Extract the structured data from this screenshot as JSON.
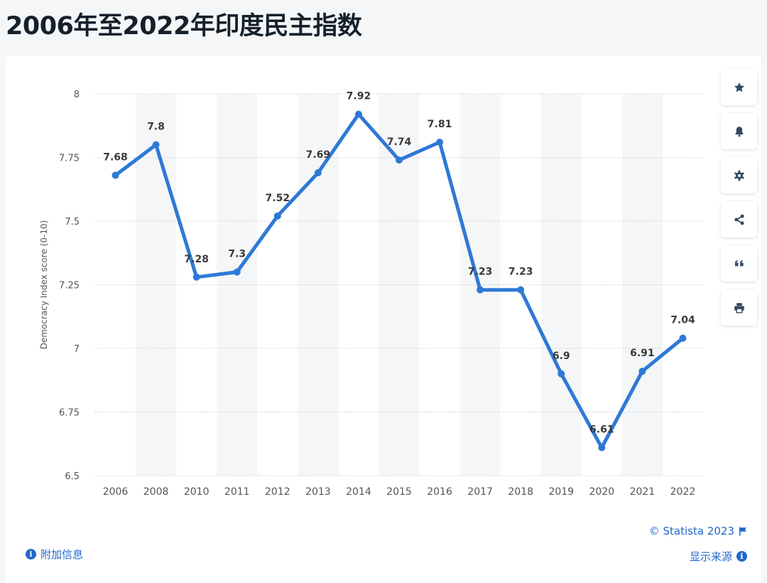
{
  "title": "2006年至2022年印度民主指数",
  "toolbar": {
    "icons": [
      "star-icon",
      "bell-icon",
      "gear-icon",
      "share-icon",
      "quote-icon",
      "print-icon"
    ]
  },
  "footer": {
    "copyright": "© Statista 2023",
    "additional_info": "附加信息",
    "show_source": "显示来源"
  },
  "colors": {
    "line": "#2e79d6",
    "accent_link": "#1f68c9",
    "band": "#f5f6f7",
    "grid": "#c9cdd2",
    "axis_text": "#555555",
    "label_text": "#3a3a3a"
  },
  "chart_data": {
    "type": "line",
    "title": "",
    "xlabel": "",
    "ylabel": "Democracy Index score (0-10)",
    "ylim": [
      6.5,
      8
    ],
    "yticks": [
      8,
      7.75,
      7.5,
      7.25,
      7,
      6.75,
      6.5
    ],
    "ytick_labels": [
      "8",
      "7.75",
      "7.5",
      "7.25",
      "7",
      "6.75",
      "6.5"
    ],
    "grid": true,
    "categories": [
      "2006",
      "2008",
      "2010",
      "2011",
      "2012",
      "2013",
      "2014",
      "2015",
      "2016",
      "2017",
      "2018",
      "2019",
      "2020",
      "2021",
      "2022"
    ],
    "values": [
      7.68,
      7.8,
      7.28,
      7.3,
      7.52,
      7.69,
      7.92,
      7.74,
      7.81,
      7.23,
      7.23,
      6.9,
      6.61,
      6.91,
      7.04
    ],
    "data_labels": [
      "7.68",
      "7.8",
      "7.28",
      "7.3",
      "7.52",
      "7.69",
      "7.92",
      "7.74",
      "7.81",
      "7.23",
      "7.23",
      "6.9",
      "6.61",
      "6.91",
      "7.04"
    ]
  }
}
